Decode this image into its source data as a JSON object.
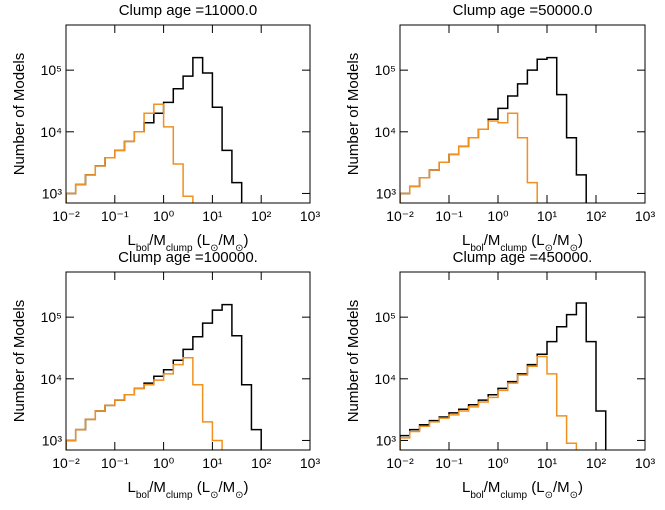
{
  "chart_data": [
    {
      "type": "histogram",
      "title": "Clump age =11000.0",
      "ylabel": "Number of Models",
      "xlabel": [
        {
          "text": "L"
        },
        {
          "text": "bol",
          "sub": true
        },
        {
          "text": "/M"
        },
        {
          "text": "clump",
          "sub": true
        },
        {
          "text": " (L"
        },
        {
          "text": "⊙",
          "sub": true
        },
        {
          "text": "/M"
        },
        {
          "text": "⊙",
          "sub": true
        },
        {
          "text": ")"
        }
      ],
      "log_x": true,
      "log_y": true,
      "xlim": [
        0.01,
        1000
      ],
      "ylim": [
        700,
        540000
      ],
      "xticks": [
        {
          "value": 0.01,
          "label": "10⁻²"
        },
        {
          "value": 0.1,
          "label": "10⁻¹"
        },
        {
          "value": 1,
          "label": "10⁰"
        },
        {
          "value": 10,
          "label": "10¹"
        },
        {
          "value": 100,
          "label": "10²"
        },
        {
          "value": 1000,
          "label": "10³"
        }
      ],
      "yticks": [
        {
          "value": 1000,
          "label": "10³"
        },
        {
          "value": 10000,
          "label": "10⁴"
        },
        {
          "value": 100000,
          "label": "10⁵"
        }
      ],
      "bins": [
        0.01,
        0.0158,
        0.0251,
        0.0398,
        0.0631,
        0.1,
        0.158,
        0.251,
        0.398,
        0.631,
        1,
        1.58,
        2.51,
        3.98,
        6.31,
        10,
        15.8,
        25.1,
        39.8,
        63.1,
        100,
        158,
        251,
        398,
        631,
        1000
      ],
      "series": [
        {
          "color": "#000000",
          "values": [
            1000,
            1400,
            2000,
            2800,
            3800,
            5000,
            7000,
            10000,
            14000,
            20000,
            30000,
            50000,
            80000,
            160000,
            90000,
            25000,
            5000,
            1500,
            null,
            null,
            null,
            null,
            null,
            null,
            null
          ]
        },
        {
          "color": "#f0901e",
          "values": [
            1000,
            1400,
            2000,
            2800,
            3800,
            5000,
            7000,
            10000,
            20000,
            28000,
            12000,
            3000,
            900,
            null,
            null,
            null,
            null,
            null,
            null,
            null,
            null,
            null,
            null,
            null,
            null
          ]
        }
      ]
    },
    {
      "type": "histogram",
      "title": "Clump age =50000.0",
      "ylabel": "Number of Models",
      "xlabel": [
        {
          "text": "L"
        },
        {
          "text": "bol",
          "sub": true
        },
        {
          "text": "/M"
        },
        {
          "text": "clump",
          "sub": true
        },
        {
          "text": " (L"
        },
        {
          "text": "⊙",
          "sub": true
        },
        {
          "text": "/M"
        },
        {
          "text": "⊙",
          "sub": true
        },
        {
          "text": ")"
        }
      ],
      "log_x": true,
      "log_y": true,
      "xlim": [
        0.01,
        1000
      ],
      "ylim": [
        700,
        540000
      ],
      "xticks": [
        {
          "value": 0.01,
          "label": "10⁻²"
        },
        {
          "value": 0.1,
          "label": "10⁻¹"
        },
        {
          "value": 1,
          "label": "10⁰"
        },
        {
          "value": 10,
          "label": "10¹"
        },
        {
          "value": 100,
          "label": "10²"
        },
        {
          "value": 1000,
          "label": "10³"
        }
      ],
      "yticks": [
        {
          "value": 1000,
          "label": "10³"
        },
        {
          "value": 10000,
          "label": "10⁴"
        },
        {
          "value": 100000,
          "label": "10⁵"
        }
      ],
      "bins": [
        0.01,
        0.0158,
        0.0251,
        0.0398,
        0.0631,
        0.1,
        0.158,
        0.251,
        0.398,
        0.631,
        1,
        1.58,
        2.51,
        3.98,
        6.31,
        10,
        15.8,
        25.1,
        39.8,
        63.1,
        100,
        158,
        251,
        398,
        631,
        1000
      ],
      "series": [
        {
          "color": "#000000",
          "values": [
            1000,
            1300,
            1800,
            2400,
            3200,
            4300,
            5800,
            8000,
            11000,
            16000,
            24000,
            38000,
            60000,
            100000,
            150000,
            160000,
            40000,
            8000,
            2000,
            null,
            null,
            null,
            null,
            null,
            null
          ]
        },
        {
          "color": "#f0901e",
          "values": [
            1000,
            1300,
            1800,
            2400,
            3200,
            4300,
            5800,
            8000,
            11000,
            15000,
            14000,
            20000,
            8000,
            1500,
            null,
            null,
            null,
            null,
            null,
            null,
            null,
            null,
            null,
            null,
            null
          ]
        }
      ]
    },
    {
      "type": "histogram",
      "title": "Clump age =100000.",
      "ylabel": "Number of Models",
      "xlabel": [
        {
          "text": "L"
        },
        {
          "text": "bol",
          "sub": true
        },
        {
          "text": "/M"
        },
        {
          "text": "clump",
          "sub": true
        },
        {
          "text": " (L"
        },
        {
          "text": "⊙",
          "sub": true
        },
        {
          "text": "/M"
        },
        {
          "text": "⊙",
          "sub": true
        },
        {
          "text": ")"
        }
      ],
      "log_x": true,
      "log_y": true,
      "xlim": [
        0.01,
        1000
      ],
      "ylim": [
        700,
        540000
      ],
      "xticks": [
        {
          "value": 0.01,
          "label": "10⁻²"
        },
        {
          "value": 0.1,
          "label": "10⁻¹"
        },
        {
          "value": 1,
          "label": "10⁰"
        },
        {
          "value": 10,
          "label": "10¹"
        },
        {
          "value": 100,
          "label": "10²"
        },
        {
          "value": 1000,
          "label": "10³"
        }
      ],
      "yticks": [
        {
          "value": 1000,
          "label": "10³"
        },
        {
          "value": 10000,
          "label": "10⁴"
        },
        {
          "value": 100000,
          "label": "10⁵"
        }
      ],
      "bins": [
        0.01,
        0.0158,
        0.0251,
        0.0398,
        0.0631,
        0.1,
        0.158,
        0.251,
        0.398,
        0.631,
        1,
        1.58,
        2.51,
        3.98,
        6.31,
        10,
        15.8,
        25.1,
        39.8,
        63.1,
        100,
        158,
        251,
        398,
        631,
        1000
      ],
      "series": [
        {
          "color": "#000000",
          "values": [
            1000,
            1500,
            2200,
            3000,
            3700,
            4500,
            5500,
            7000,
            8500,
            11000,
            14000,
            20000,
            30000,
            48000,
            80000,
            130000,
            160000,
            50000,
            8000,
            1500,
            null,
            null,
            null,
            null,
            null
          ]
        },
        {
          "color": "#f0901e",
          "values": [
            1000,
            1500,
            2200,
            3000,
            3700,
            4500,
            5500,
            7000,
            8000,
            9500,
            12000,
            17000,
            22000,
            8000,
            2000,
            1000,
            null,
            null,
            null,
            null,
            null,
            null,
            null,
            null,
            null
          ]
        }
      ]
    },
    {
      "type": "histogram",
      "title": "Clump age =450000.",
      "ylabel": "Number of Models",
      "xlabel": [
        {
          "text": "L"
        },
        {
          "text": "bol",
          "sub": true
        },
        {
          "text": "/M"
        },
        {
          "text": "clump",
          "sub": true
        },
        {
          "text": " (L"
        },
        {
          "text": "⊙",
          "sub": true
        },
        {
          "text": "/M"
        },
        {
          "text": "⊙",
          "sub": true
        },
        {
          "text": ")"
        }
      ],
      "log_x": true,
      "log_y": true,
      "xlim": [
        0.01,
        1000
      ],
      "ylim": [
        700,
        540000
      ],
      "xticks": [
        {
          "value": 0.01,
          "label": "10⁻²"
        },
        {
          "value": 0.1,
          "label": "10⁻¹"
        },
        {
          "value": 1,
          "label": "10⁰"
        },
        {
          "value": 10,
          "label": "10¹"
        },
        {
          "value": 100,
          "label": "10²"
        },
        {
          "value": 1000,
          "label": "10³"
        }
      ],
      "yticks": [
        {
          "value": 1000,
          "label": "10³"
        },
        {
          "value": 10000,
          "label": "10⁴"
        },
        {
          "value": 100000,
          "label": "10⁵"
        }
      ],
      "bins": [
        0.01,
        0.0158,
        0.0251,
        0.0398,
        0.0631,
        0.1,
        0.158,
        0.251,
        0.398,
        0.631,
        1,
        1.58,
        2.51,
        3.98,
        6.31,
        10,
        15.8,
        25.1,
        39.8,
        63.1,
        100,
        158,
        251,
        398,
        631,
        1000
      ],
      "series": [
        {
          "color": "#000000",
          "values": [
            1200,
            1500,
            1800,
            2100,
            2400,
            2800,
            3200,
            3800,
            4500,
            5500,
            7000,
            9000,
            12000,
            17000,
            25000,
            40000,
            70000,
            110000,
            170000,
            40000,
            3000,
            null,
            null,
            null,
            null
          ]
        },
        {
          "color": "#f0901e",
          "values": [
            1100,
            1400,
            1700,
            2000,
            2300,
            2600,
            3000,
            3500,
            4200,
            5000,
            6500,
            8500,
            11500,
            16000,
            23000,
            12000,
            2500,
            900,
            null,
            null,
            null,
            null,
            null,
            null,
            null
          ]
        }
      ]
    }
  ]
}
